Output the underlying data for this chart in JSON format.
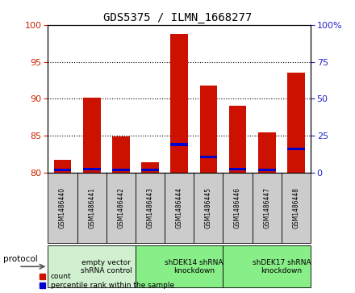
{
  "title": "GDS5375 / ILMN_1668277",
  "samples": [
    "GSM1486440",
    "GSM1486441",
    "GSM1486442",
    "GSM1486443",
    "GSM1486444",
    "GSM1486445",
    "GSM1486446",
    "GSM1486447",
    "GSM1486448"
  ],
  "counts": [
    81.7,
    90.1,
    84.9,
    81.4,
    98.8,
    91.8,
    89.0,
    85.4,
    93.5
  ],
  "percentiles": [
    80.4,
    80.5,
    80.4,
    80.4,
    83.8,
    82.1,
    80.5,
    80.4,
    83.2
  ],
  "ymin": 80,
  "ymax": 100,
  "yticks_left": [
    80,
    85,
    90,
    95,
    100
  ],
  "yticks_right": [
    80,
    85,
    90,
    95,
    100
  ],
  "right_yticklabels": [
    "0",
    "25",
    "50",
    "75",
    "100%"
  ],
  "groups": [
    {
      "label": "empty vector\nshRNA control",
      "start": 0,
      "end": 3,
      "color": "#d0f0d0"
    },
    {
      "label": "shDEK14 shRNA\nknockdown",
      "start": 3,
      "end": 6,
      "color": "#88ee88"
    },
    {
      "label": "shDEK17 shRNA\nknockdown",
      "start": 6,
      "end": 9,
      "color": "#88ee88"
    }
  ],
  "bar_color": "#cc1100",
  "percentile_color": "#0000cc",
  "bar_width": 0.6,
  "protocol_label": "protocol",
  "legend_count": "count",
  "legend_percentile": "percentile rank within the sample",
  "plot_bg": "#ffffff",
  "sample_box_color": "#cccccc"
}
